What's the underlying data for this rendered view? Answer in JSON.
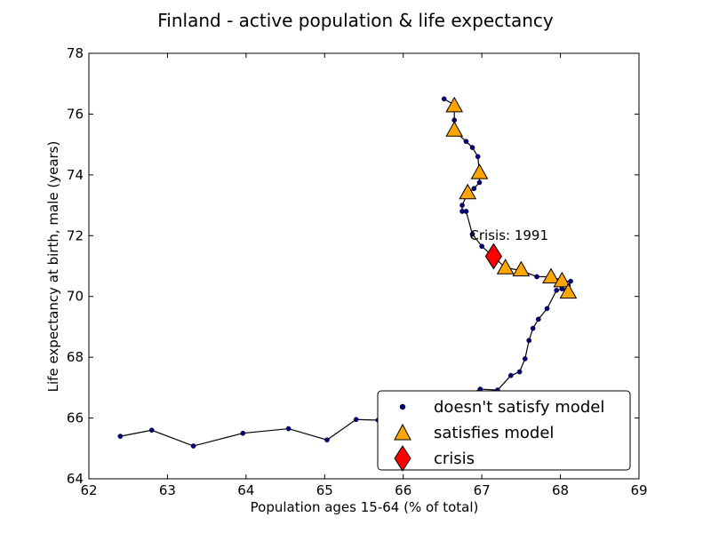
{
  "chart_data": {
    "type": "scatter",
    "title": "Finland - active population & life expectancy",
    "xlabel": "Population ages 15-64 (% of total)",
    "ylabel": "Life expectancy at birth, male (years)",
    "xlim": [
      62,
      69
    ],
    "ylim": [
      64,
      78
    ],
    "xticks": [
      "62",
      "63",
      "64",
      "65",
      "66",
      "67",
      "68",
      "69"
    ],
    "yticks": [
      "64",
      "66",
      "68",
      "70",
      "72",
      "74",
      "76",
      "78"
    ],
    "grid": false,
    "legend_position": "lower-right",
    "colors": {
      "line": "#000000",
      "point": "#000080",
      "satisfies": "#ffa500",
      "crisis": "#ff0000"
    },
    "legend": [
      {
        "label": "doesn't satisfy model",
        "marker": "dot"
      },
      {
        "label": "satisfies model",
        "marker": "triangle"
      },
      {
        "label": "crisis",
        "marker": "diamond"
      }
    ],
    "annotation": {
      "text": "Crisis: 1991",
      "x": 67.15,
      "y": 71.4
    },
    "series": [
      {
        "values": [
          [
            62.4,
            65.4
          ],
          [
            62.8,
            65.6
          ],
          [
            63.33,
            65.08
          ],
          [
            63.96,
            65.5
          ],
          [
            64.54,
            65.65
          ],
          [
            65.03,
            65.28
          ],
          [
            65.4,
            65.95
          ],
          [
            65.68,
            65.93
          ],
          [
            65.95,
            65.88
          ],
          [
            66.25,
            65.7
          ],
          [
            66.55,
            66.3
          ],
          [
            66.8,
            66.75
          ],
          [
            66.98,
            66.95
          ],
          [
            67.2,
            66.92
          ],
          [
            67.37,
            67.4
          ],
          [
            67.48,
            67.52
          ],
          [
            67.55,
            67.95
          ],
          [
            67.6,
            68.55
          ],
          [
            67.65,
            68.95
          ],
          [
            67.72,
            69.25
          ],
          [
            67.83,
            69.6
          ],
          [
            67.95,
            70.2
          ],
          [
            68.02,
            70.25
          ],
          [
            68.07,
            70.2
          ],
          [
            68.1,
            70.35
          ],
          [
            68.13,
            70.5
          ],
          [
            68.05,
            70.5
          ],
          [
            67.88,
            70.65
          ],
          [
            67.7,
            70.65
          ],
          [
            67.5,
            70.85
          ],
          [
            67.3,
            70.95
          ],
          [
            67.15,
            71.3
          ],
          [
            67.0,
            71.65
          ],
          [
            66.88,
            72.05
          ],
          [
            66.8,
            72.8
          ],
          [
            66.75,
            72.8
          ],
          [
            66.75,
            73.0
          ],
          [
            66.82,
            73.4
          ],
          [
            66.9,
            73.55
          ],
          [
            66.97,
            73.75
          ],
          [
            66.97,
            74.05
          ],
          [
            66.95,
            74.6
          ],
          [
            66.88,
            74.9
          ],
          [
            66.8,
            75.1
          ],
          [
            66.65,
            75.45
          ],
          [
            66.65,
            75.8
          ],
          [
            66.65,
            76.3
          ],
          [
            66.52,
            76.5
          ]
        ]
      },
      {
        "name": "satisfies model",
        "values": [
          [
            66.65,
            76.28
          ],
          [
            66.65,
            75.48
          ],
          [
            66.97,
            74.08
          ],
          [
            66.82,
            73.42
          ],
          [
            67.3,
            70.95
          ],
          [
            67.5,
            70.88
          ],
          [
            67.88,
            70.65
          ],
          [
            68.02,
            70.52
          ],
          [
            68.1,
            70.15
          ]
        ]
      },
      {
        "name": "crisis",
        "values": [
          [
            67.15,
            71.32
          ]
        ]
      }
    ]
  }
}
